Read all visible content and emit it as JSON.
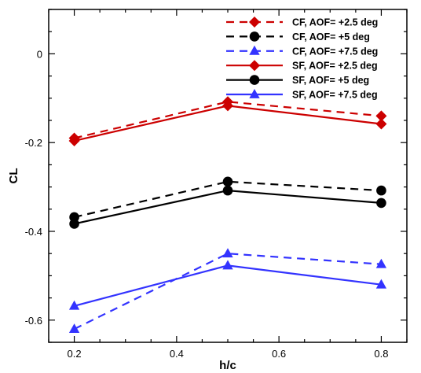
{
  "chart_data": {
    "type": "line",
    "title": "",
    "xlabel": "h/c",
    "ylabel": "CL",
    "xlim": [
      0.15,
      0.85
    ],
    "ylim": [
      -0.65,
      0.1
    ],
    "xticks": [
      0.2,
      0.4,
      0.6,
      0.8
    ],
    "xtick_labels": [
      "0.2",
      "0.4",
      "0.6",
      "0.8"
    ],
    "yticks": [
      -0.6,
      -0.4,
      -0.2,
      0
    ],
    "ytick_labels": [
      "-0.6",
      "-0.4",
      "-0.2",
      "0"
    ],
    "grid": false,
    "legend_position": "top-right",
    "x": [
      0.2,
      0.5,
      0.8
    ],
    "series": [
      {
        "name": "CF, AOF= +2.5 deg",
        "values": [
          -0.19,
          -0.108,
          -0.14
        ],
        "color": "#cc0000",
        "dash": "dashed",
        "marker": "diamond"
      },
      {
        "name": "CF, AOF= +5 deg",
        "values": [
          -0.368,
          -0.288,
          -0.308
        ],
        "color": "#000000",
        "dash": "dashed",
        "marker": "circle"
      },
      {
        "name": "CF, AOF= +7.5 deg",
        "values": [
          -0.62,
          -0.45,
          -0.474
        ],
        "color": "#3333ff",
        "dash": "dashed",
        "marker": "triangle"
      },
      {
        "name": "SF, AOF= +2.5 deg",
        "values": [
          -0.196,
          -0.117,
          -0.158
        ],
        "color": "#cc0000",
        "dash": "solid",
        "marker": "diamond"
      },
      {
        "name": "SF, AOF= +5 deg",
        "values": [
          -0.383,
          -0.308,
          -0.336
        ],
        "color": "#000000",
        "dash": "solid",
        "marker": "circle"
      },
      {
        "name": "SF, AOF= +7.5 deg",
        "values": [
          -0.568,
          -0.477,
          -0.52
        ],
        "color": "#3333ff",
        "dash": "solid",
        "marker": "triangle"
      }
    ]
  }
}
